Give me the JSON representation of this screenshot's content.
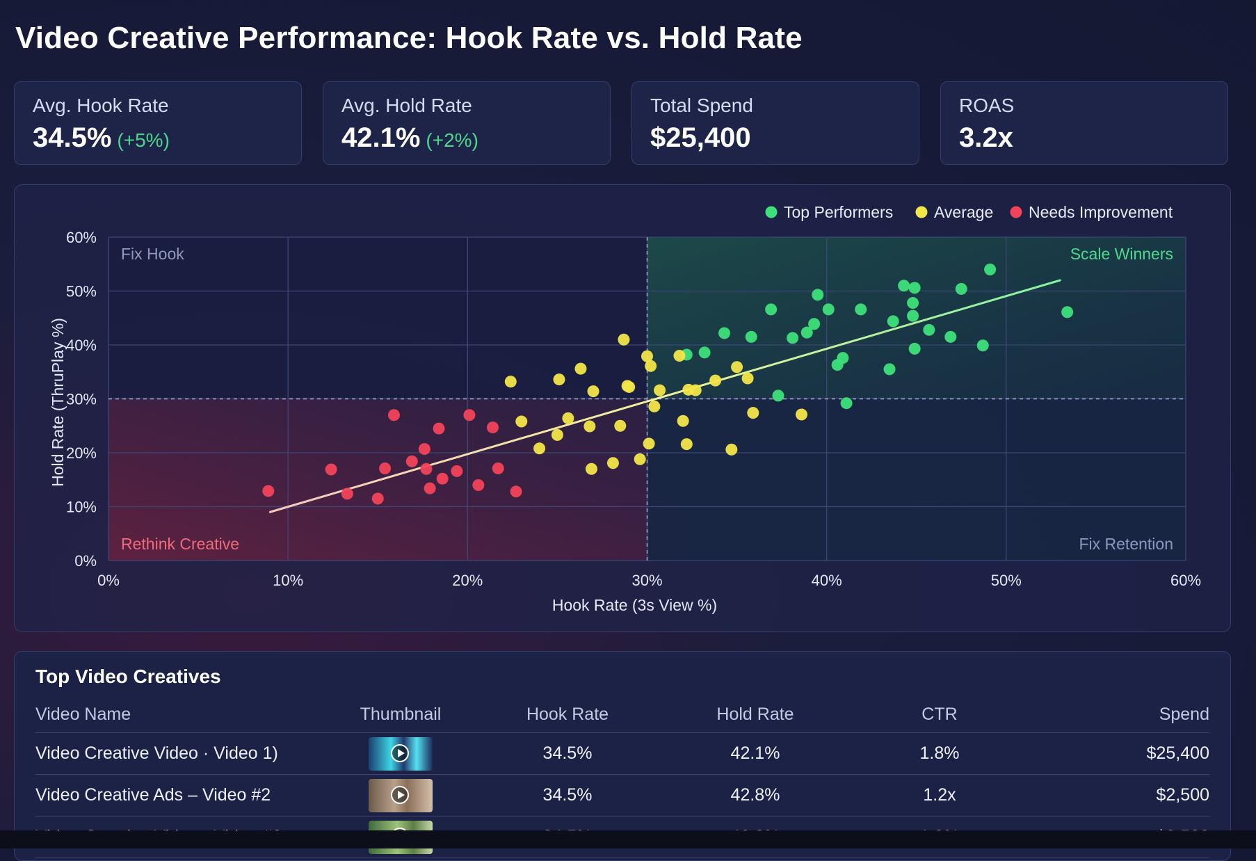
{
  "title": "Video Creative Performance: Hook Rate vs. Hold Rate",
  "kpis": [
    {
      "label": "Avg. Hook Rate",
      "value": "34.5%",
      "delta": "(+5%)"
    },
    {
      "label": "Avg. Hold Rate",
      "value": "42.1%",
      "delta": "(+2%)"
    },
    {
      "label": "Total Spend",
      "value": "$25,400",
      "delta": ""
    },
    {
      "label": "ROAS",
      "value": "3.2x",
      "delta": ""
    }
  ],
  "colors": {
    "top": "#3ee07a",
    "average": "#f3e649",
    "needs": "#f2435a",
    "trend_start": "#f7c7c0",
    "trend_end": "#7ff2a0",
    "background": "#141833",
    "card": "#1d2448"
  },
  "chart_data": {
    "type": "scatter",
    "title": "Video Creative Performance: Hook Rate vs. Hold Rate",
    "xlabel": "Hook Rate (3s View %)",
    "ylabel": "Hold Rate (ThruPlay %)",
    "xlim": [
      0,
      60
    ],
    "ylim": [
      0,
      60
    ],
    "xticks": [
      "0%",
      "10%",
      "20%",
      "30%",
      "40%",
      "50%",
      "60%"
    ],
    "yticks": [
      "0%",
      "10%",
      "20%",
      "30%",
      "40%",
      "50%",
      "60%"
    ],
    "grid": true,
    "legend_position": "top-right",
    "thresholds": {
      "x": 30,
      "y": 30
    },
    "quadrant_labels": {
      "top_left": "Fix Hook",
      "top_right": "Scale Winners",
      "bottom_left": "Rethink Creative",
      "bottom_right": "Fix Retention"
    },
    "trendline": {
      "start": [
        9,
        9
      ],
      "end": [
        53,
        52
      ]
    },
    "series": [
      {
        "name": "Top Performers",
        "points": [
          [
            32.2,
            38.2
          ],
          [
            33.2,
            38.6
          ],
          [
            34.3,
            42.2
          ],
          [
            35.8,
            41.5
          ],
          [
            36.9,
            46.6
          ],
          [
            37.3,
            30.6
          ],
          [
            38.1,
            41.3
          ],
          [
            38.9,
            42.3
          ],
          [
            39.3,
            43.9
          ],
          [
            39.5,
            49.3
          ],
          [
            40.1,
            46.6
          ],
          [
            40.6,
            36.3
          ],
          [
            40.9,
            37.6
          ],
          [
            41.1,
            29.2
          ],
          [
            41.9,
            46.6
          ],
          [
            43.5,
            35.5
          ],
          [
            43.7,
            44.4
          ],
          [
            44.3,
            51.0
          ],
          [
            44.8,
            47.8
          ],
          [
            44.8,
            45.4
          ],
          [
            44.9,
            50.6
          ],
          [
            44.9,
            39.3
          ],
          [
            45.7,
            42.8
          ],
          [
            46.9,
            41.5
          ],
          [
            47.5,
            50.4
          ],
          [
            48.7,
            39.9
          ],
          [
            49.1,
            54.0
          ],
          [
            53.4,
            46.1
          ]
        ]
      },
      {
        "name": "Average",
        "points": [
          [
            22.4,
            33.2
          ],
          [
            23.0,
            25.8
          ],
          [
            24.0,
            20.8
          ],
          [
            25.0,
            23.3
          ],
          [
            25.1,
            33.6
          ],
          [
            25.6,
            26.4
          ],
          [
            26.3,
            35.6
          ],
          [
            26.8,
            24.9
          ],
          [
            26.9,
            17.0
          ],
          [
            27.0,
            31.4
          ],
          [
            28.1,
            18.1
          ],
          [
            28.5,
            25.0
          ],
          [
            28.7,
            41.0
          ],
          [
            28.9,
            32.4
          ],
          [
            29.0,
            32.2
          ],
          [
            29.6,
            18.8
          ],
          [
            30.0,
            37.9
          ],
          [
            30.1,
            21.7
          ],
          [
            30.2,
            36.1
          ],
          [
            30.4,
            28.6
          ],
          [
            30.7,
            31.6
          ],
          [
            31.8,
            38.0
          ],
          [
            32.0,
            25.9
          ],
          [
            32.2,
            21.6
          ],
          [
            32.3,
            31.7
          ],
          [
            32.7,
            31.6
          ],
          [
            33.8,
            33.4
          ],
          [
            34.7,
            20.6
          ],
          [
            35.0,
            35.9
          ],
          [
            35.6,
            33.8
          ],
          [
            35.9,
            27.4
          ],
          [
            38.6,
            27.1
          ]
        ]
      },
      {
        "name": "Needs Improvement",
        "points": [
          [
            8.9,
            12.9
          ],
          [
            12.4,
            16.9
          ],
          [
            13.3,
            12.4
          ],
          [
            15.0,
            11.5
          ],
          [
            15.4,
            17.1
          ],
          [
            15.9,
            27.0
          ],
          [
            16.9,
            18.4
          ],
          [
            17.6,
            20.7
          ],
          [
            17.7,
            17.0
          ],
          [
            17.9,
            13.4
          ],
          [
            18.4,
            24.5
          ],
          [
            18.6,
            15.2
          ],
          [
            19.4,
            16.6
          ],
          [
            20.1,
            27.0
          ],
          [
            20.6,
            14.0
          ],
          [
            21.4,
            24.7
          ],
          [
            21.7,
            17.1
          ],
          [
            22.7,
            12.8
          ]
        ]
      }
    ]
  },
  "table": {
    "title": "Top Video Creatives",
    "columns": [
      "Video Name",
      "Thumbnail",
      "Hook Rate",
      "Hold Rate",
      "CTR",
      "Spend"
    ],
    "rows": [
      {
        "name": "Video Creative Video · Video 1)",
        "hook": "34.5%",
        "hold": "42.1%",
        "ctr": "1.8%",
        "spend": "$25,400"
      },
      {
        "name": "Video Creative Ads – Video #2",
        "hook": "34.5%",
        "hold": "42.8%",
        "ctr": "1.2x",
        "spend": "$2,500"
      },
      {
        "name": "Video Creative Video · Video #3",
        "hook": "34.5%",
        "hold": "42.3%",
        "ctr": "1.9%",
        "spend": "$2,500"
      }
    ]
  }
}
